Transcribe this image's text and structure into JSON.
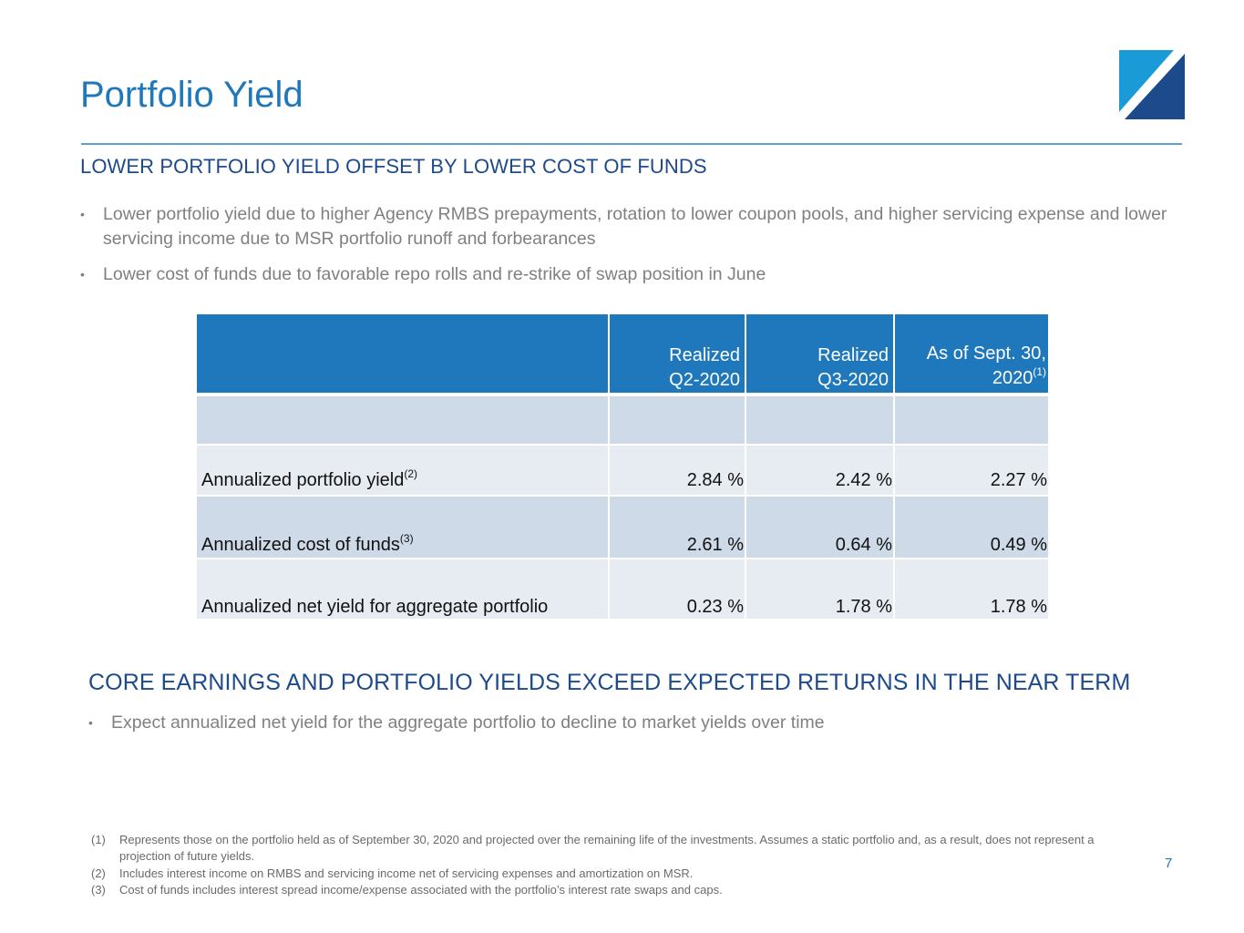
{
  "page": {
    "title": "Portfolio Yield",
    "number": "7"
  },
  "section1": {
    "heading": "LOWER PORTFOLIO YIELD OFFSET BY LOWER COST OF FUNDS",
    "bullets": [
      "Lower portfolio yield due to higher Agency RMBS prepayments, rotation to lower coupon pools, and higher servicing expense and lower servicing income due to MSR portfolio runoff and forbearances",
      "Lower cost of funds due to favorable repo rolls and re-strike of swap position in June"
    ]
  },
  "table": {
    "columns": [
      {
        "line1": "Realized",
        "line2": "Q2-2020",
        "sup": ""
      },
      {
        "line1": "Realized",
        "line2": "Q3-2020",
        "sup": ""
      },
      {
        "line1": "As of Sept. 30,",
        "line2": "2020",
        "sup": "(1)"
      }
    ],
    "rows": [
      {
        "label": "Annualized portfolio yield",
        "sup": "(2)",
        "values": [
          "2.84 %",
          "2.42 %",
          "2.27 %"
        ]
      },
      {
        "label": "Annualized cost of funds",
        "sup": "(3)",
        "values": [
          "2.61 %",
          "0.64 %",
          "0.49 %"
        ]
      },
      {
        "label": "Annualized net yield for aggregate portfolio",
        "sup": "",
        "values": [
          "0.23 %",
          "1.78 %",
          "1.78 %"
        ]
      }
    ]
  },
  "section2": {
    "heading": "CORE EARNINGS AND PORTFOLIO YIELDS EXCEED EXPECTED RETURNS IN THE NEAR TERM",
    "bullets": [
      "Expect annualized net yield for the aggregate portfolio to decline to market yields over time"
    ]
  },
  "footnotes": [
    {
      "num": "(1)",
      "text": "Represents those on the portfolio held as of September 30, 2020 and projected over the remaining life of the investments. Assumes a static portfolio and, as a result, does not represent a projection of future yields."
    },
    {
      "num": "(2)",
      "text": "Includes interest income on RMBS and servicing income net of servicing expenses and amortization on MSR."
    },
    {
      "num": "(3)",
      "text": "Cost of funds includes interest spread income/expense associated with the portfolio’s interest rate swaps and caps."
    }
  ],
  "colors": {
    "title_blue": "#1f77bc",
    "heading_navy": "#1d4a8a",
    "table_header": "#1f78bc",
    "band": "#cfdae8",
    "row_light": "#e7ecf3"
  }
}
